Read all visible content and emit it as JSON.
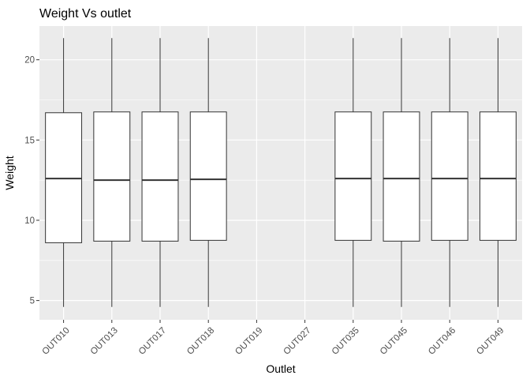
{
  "chart_data": {
    "type": "boxplot",
    "title": "Weight Vs outlet",
    "xlabel": "Outlet",
    "ylabel": "Weight",
    "ylim": [
      3.8,
      22.1
    ],
    "yticks": [
      5,
      10,
      15,
      20
    ],
    "grid": true,
    "legend": "none",
    "categories": [
      "OUT010",
      "OUT013",
      "OUT017",
      "OUT018",
      "OUT019",
      "OUT027",
      "OUT035",
      "OUT045",
      "OUT046",
      "OUT049"
    ],
    "boxes": [
      {
        "category": "OUT010",
        "min": 4.6,
        "q1": 8.6,
        "median": 12.6,
        "q3": 16.7,
        "max": 21.35
      },
      {
        "category": "OUT013",
        "min": 4.6,
        "q1": 8.7,
        "median": 12.5,
        "q3": 16.75,
        "max": 21.35
      },
      {
        "category": "OUT017",
        "min": 4.6,
        "q1": 8.7,
        "median": 12.5,
        "q3": 16.75,
        "max": 21.35
      },
      {
        "category": "OUT018",
        "min": 4.6,
        "q1": 8.75,
        "median": 12.55,
        "q3": 16.75,
        "max": 21.35
      },
      {
        "category": "OUT019",
        "min": null,
        "q1": null,
        "median": null,
        "q3": null,
        "max": null
      },
      {
        "category": "OUT027",
        "min": null,
        "q1": null,
        "median": null,
        "q3": null,
        "max": null
      },
      {
        "category": "OUT035",
        "min": 4.6,
        "q1": 8.75,
        "median": 12.6,
        "q3": 16.75,
        "max": 21.35
      },
      {
        "category": "OUT045",
        "min": 4.6,
        "q1": 8.7,
        "median": 12.6,
        "q3": 16.75,
        "max": 21.35
      },
      {
        "category": "OUT046",
        "min": 4.6,
        "q1": 8.75,
        "median": 12.6,
        "q3": 16.75,
        "max": 21.35
      },
      {
        "category": "OUT049",
        "min": 4.6,
        "q1": 8.75,
        "median": 12.6,
        "q3": 16.75,
        "max": 21.35
      }
    ],
    "colors": {
      "panel_background": "#EBEBEB",
      "grid_major": "#FFFFFF",
      "box_fill": "#FFFFFF",
      "box_stroke": "#333333",
      "tick_label": "#4D4D4D"
    }
  }
}
